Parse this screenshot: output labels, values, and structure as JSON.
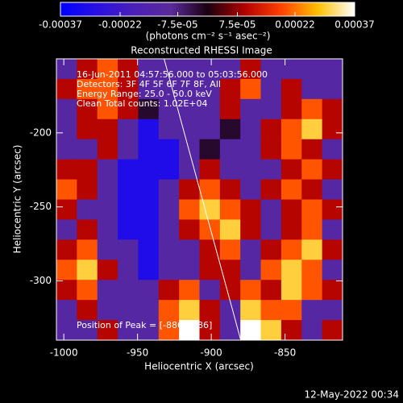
{
  "chart_data": {
    "type": "heatmap",
    "title": "Reconstructed RHESSI Image",
    "xlabel": "Heliocentric X (arcsec)",
    "ylabel": "Heliocentric Y (arcsec)",
    "xlim": [
      -1005,
      -811
    ],
    "ylim": [
      -340,
      -150
    ],
    "xticks": [
      -1000,
      -950,
      -900,
      -850
    ],
    "yticks": [
      -300,
      -250,
      -200
    ],
    "zlim": [
      -0.00037,
      0.00037
    ],
    "zticks": [
      -0.00037,
      -0.00022,
      {
        "value": -7.5e-05,
        "label": "-7.5e-05"
      },
      {
        "value": 7.5e-05,
        "label": "7.5e-05"
      },
      0.00022,
      0.00037
    ],
    "zlabel": "(photons cm⁻² s⁻¹ asec⁻²)",
    "colormap": [
      "#0000ff",
      "#2a10e0",
      "#4a20b8",
      "#5a2a9a",
      "#1a0010",
      "#b00000",
      "#ff4000",
      "#ffc000",
      "#ffffff"
    ],
    "values": [
      [
        -0.00012,
        0.0001,
        0.0002,
        0.0001,
        -0.00012,
        -0.00012,
        -0.00012,
        -0.00012,
        -0.00012,
        0.0001,
        -0.00012,
        -0.00012,
        -0.00012,
        -0.00012
      ],
      [
        0.0001,
        0.0002,
        0.0002,
        0.0001,
        -0.00012,
        -0.00012,
        -0.00012,
        -0.00012,
        0.0001,
        0.0002,
        -0.00012,
        0.0001,
        -0.00012,
        -0.00012
      ],
      [
        -0.00012,
        0.0001,
        0.0002,
        0.0001,
        -2e-05,
        -0.00012,
        -0.00012,
        -0.00012,
        0.0001,
        -0.00012,
        -0.00012,
        0.0001,
        0.0002,
        0.0001
      ],
      [
        -0.00012,
        0.0001,
        0.0001,
        -0.00012,
        -0.0003,
        -0.00012,
        -0.00012,
        -0.00012,
        -2e-05,
        -0.00012,
        0.0001,
        0.0002,
        0.0003,
        0.0001
      ],
      [
        -0.00012,
        -0.00012,
        0.0001,
        -0.00012,
        -0.0003,
        -0.0003,
        -0.00012,
        -2e-05,
        -0.00012,
        -0.00012,
        0.0001,
        0.0002,
        0.0001,
        -0.00012
      ],
      [
        0.0001,
        0.0001,
        -0.00012,
        -0.0003,
        -0.0003,
        -0.0003,
        -0.00012,
        0.0001,
        -0.00012,
        -0.00012,
        -0.00012,
        0.0001,
        0.0002,
        0.0001
      ],
      [
        0.0002,
        0.0001,
        -0.00012,
        -0.0003,
        -0.0003,
        -0.00012,
        0.0001,
        0.0002,
        0.0001,
        -0.00012,
        0.0001,
        0.0002,
        0.0001,
        -0.00012
      ],
      [
        0.0001,
        -0.00012,
        -0.00012,
        -0.0003,
        -0.0003,
        -0.00012,
        0.0002,
        0.0003,
        0.0002,
        0.0001,
        -0.00012,
        0.0001,
        0.0002,
        0.0001
      ],
      [
        -0.00012,
        0.0001,
        -0.00012,
        -0.0003,
        -0.0003,
        -0.00012,
        0.0001,
        0.0002,
        0.0003,
        0.0001,
        -0.00012,
        0.0001,
        0.0002,
        -0.00012
      ],
      [
        0.0001,
        0.0002,
        -0.00012,
        -0.00012,
        -0.0003,
        -0.00012,
        -0.00012,
        0.0001,
        0.0002,
        -0.00012,
        0.0001,
        0.0002,
        0.0003,
        0.0001
      ],
      [
        0.0002,
        0.0003,
        0.0001,
        -0.00012,
        -0.0003,
        -0.00012,
        -0.00012,
        0.0001,
        0.0001,
        -0.00012,
        0.0002,
        0.0003,
        0.0002,
        -0.00012
      ],
      [
        0.0001,
        0.0002,
        -0.00012,
        -0.00012,
        -0.00012,
        0.0001,
        0.0002,
        -0.00012,
        0.0001,
        0.0002,
        0.0001,
        0.0003,
        0.0002,
        0.0001
      ],
      [
        -0.00012,
        0.0001,
        -0.00012,
        -0.00012,
        -0.00012,
        0.0002,
        0.0003,
        0.0001,
        -0.00012,
        0.0003,
        0.0002,
        0.0002,
        -0.00012,
        -0.00012
      ],
      [
        -0.00012,
        -0.00012,
        0.0001,
        -0.00012,
        -0.00012,
        0.0002,
        0.00037,
        0.0001,
        -0.00012,
        0.00037,
        0.0003,
        0.0001,
        -0.00012,
        0.0001
      ]
    ],
    "limb": {
      "x": [
        -932,
        -880
      ],
      "y": [
        -150,
        -340
      ]
    },
    "annotations": [
      "16-Jun-2011 04:57:56.000 to 05:03:56.000",
      "Detectors: 3F 4F 5F 6F 7F 8F, All",
      "Energy Range: 25.0 - 50.0 keV",
      "Clean     Total counts: 1.02E+04"
    ],
    "peak_label": "Position of Peak = [-886, -186]"
  },
  "footer": "12-May-2022 00:34"
}
